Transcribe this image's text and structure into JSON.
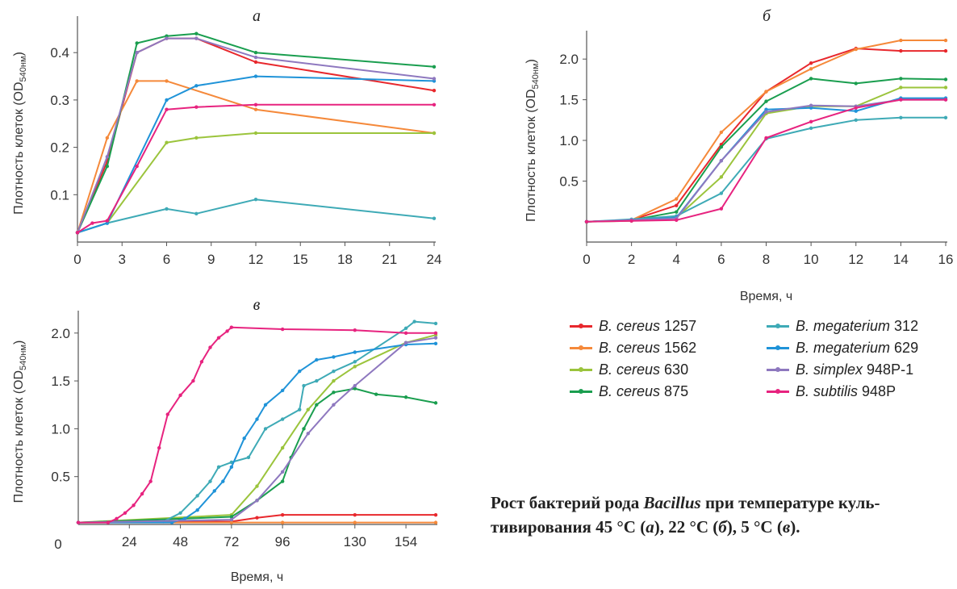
{
  "colors": {
    "bc1257": "#e8282d",
    "bc1562": "#f5893a",
    "bc630": "#9bc43c",
    "bc875": "#1a9e4f",
    "bm312": "#3eaab6",
    "bm629": "#1f93d8",
    "bs9481": "#8e78bf",
    "bsub948": "#e7237f"
  },
  "legend": [
    {
      "genus": "B. cereus",
      "strain": "1257",
      "color": "#e8282d"
    },
    {
      "genus": "B. cereus",
      "strain": "1562",
      "color": "#f5893a"
    },
    {
      "genus": "B. cereus",
      "strain": "630",
      "color": "#9bc43c"
    },
    {
      "genus": "B. cereus",
      "strain": "875",
      "color": "#1a9e4f"
    },
    {
      "genus": "B. megaterium",
      "strain": "312",
      "color": "#3eaab6"
    },
    {
      "genus": "B. megaterium",
      "strain": "629",
      "color": "#1f93d8"
    },
    {
      "genus": "B. simplex",
      "strain": "948P-1",
      "color": "#8e78bf"
    },
    {
      "genus": "B. subtilis",
      "strain": "948P",
      "color": "#e7237f"
    }
  ],
  "caption": {
    "line1_a": "Рост бактерий рода ",
    "line1_b": "Bacillus",
    "line1_c": " при температуре куль-",
    "line2_a": "тивирования 45 °C (",
    "line2_b": "а",
    "line2_c": "), 22 °C (",
    "line2_d": "б",
    "line2_e": "), 5 °C (",
    "line2_f": "в",
    "line2_g": ")."
  },
  "chart_data": [
    {
      "id": "a",
      "type": "line",
      "title": "а",
      "xlabel": "",
      "ylabel": "Плотность клеток (OD540нм)",
      "xlim": [
        0,
        24
      ],
      "ylim": [
        0,
        0.46
      ],
      "xticks": [
        0,
        3,
        6,
        9,
        12,
        15,
        18,
        21,
        24
      ],
      "yticks": [
        0.1,
        0.2,
        0.3,
        0.4
      ],
      "xtick_labels": [
        "0",
        "3",
        "6",
        "9",
        "12",
        "15",
        "18",
        "21",
        "24"
      ],
      "ytick_labels": [
        "0.1",
        "0.2",
        "0.3",
        "0.4"
      ],
      "series": [
        {
          "name": "B. cereus 1257",
          "color": "#e8282d",
          "x": [
            0,
            2,
            4,
            6,
            8,
            12,
            24
          ],
          "y": [
            0.02,
            0.17,
            0.4,
            0.43,
            0.43,
            0.38,
            0.32
          ]
        },
        {
          "name": "B. cereus 1562",
          "color": "#f5893a",
          "x": [
            0,
            2,
            4,
            6,
            12,
            24
          ],
          "y": [
            0.02,
            0.22,
            0.34,
            0.34,
            0.28,
            0.23
          ]
        },
        {
          "name": "B. cereus 630",
          "color": "#9bc43c",
          "x": [
            0,
            2,
            6,
            8,
            12,
            24
          ],
          "y": [
            0.02,
            0.04,
            0.21,
            0.22,
            0.23,
            0.23
          ]
        },
        {
          "name": "B. cereus 875",
          "color": "#1a9e4f",
          "x": [
            0,
            2,
            4,
            6,
            8,
            12,
            24
          ],
          "y": [
            0.02,
            0.16,
            0.42,
            0.435,
            0.44,
            0.4,
            0.37
          ]
        },
        {
          "name": "B. megaterium 312",
          "color": "#3eaab6",
          "x": [
            0,
            2,
            6,
            8,
            12,
            24
          ],
          "y": [
            0.02,
            0.04,
            0.07,
            0.06,
            0.09,
            0.05
          ]
        },
        {
          "name": "B. megaterium 629",
          "color": "#1f93d8",
          "x": [
            0,
            2,
            6,
            8,
            12,
            24
          ],
          "y": [
            0.02,
            0.04,
            0.3,
            0.33,
            0.35,
            0.34
          ]
        },
        {
          "name": "B. simplex 948P-1",
          "color": "#8e78bf",
          "x": [
            0,
            2,
            4,
            6,
            8,
            12,
            24
          ],
          "y": [
            0.02,
            0.18,
            0.4,
            0.43,
            0.43,
            0.39,
            0.345
          ]
        },
        {
          "name": "B. subtilis 948P",
          "color": "#e7237f",
          "x": [
            0,
            1,
            2,
            4,
            6,
            8,
            12,
            24
          ],
          "y": [
            0.02,
            0.04,
            0.045,
            0.16,
            0.28,
            0.285,
            0.29,
            0.29
          ]
        }
      ]
    },
    {
      "id": "b",
      "type": "line",
      "title": "б",
      "xlabel": "Время, ч",
      "ylabel": "Плотность клеток (OD540нм)",
      "xlim": [
        0,
        16
      ],
      "ylim": [
        -0.25,
        2.25
      ],
      "xticks": [
        0,
        2,
        4,
        6,
        8,
        10,
        12,
        14,
        16
      ],
      "yticks": [
        0.5,
        1.0,
        1.5,
        2.0
      ],
      "xtick_labels": [
        "0",
        "2",
        "4",
        "6",
        "8",
        "10",
        "12",
        "14",
        "16"
      ],
      "ytick_labels": [
        "0.5",
        "1.0",
        "1.5",
        "2.0"
      ],
      "series": [
        {
          "name": "B. cereus 1257",
          "color": "#e8282d",
          "x": [
            0,
            2,
            4,
            6,
            8,
            10,
            12,
            14,
            16
          ],
          "y": [
            0,
            0.02,
            0.2,
            0.95,
            1.6,
            1.95,
            2.13,
            2.1,
            2.1
          ]
        },
        {
          "name": "B. cereus 1562",
          "color": "#f5893a",
          "x": [
            0,
            2,
            4,
            6,
            8,
            10,
            12,
            14,
            16
          ],
          "y": [
            0,
            0.02,
            0.28,
            1.1,
            1.6,
            1.88,
            2.12,
            2.23,
            2.23
          ]
        },
        {
          "name": "B. cereus 630",
          "color": "#9bc43c",
          "x": [
            0,
            2,
            4,
            6,
            8,
            10,
            12,
            14,
            16
          ],
          "y": [
            0,
            0.01,
            0.05,
            0.55,
            1.33,
            1.42,
            1.42,
            1.65,
            1.65
          ]
        },
        {
          "name": "B. cereus 875",
          "color": "#1a9e4f",
          "x": [
            0,
            2,
            4,
            6,
            8,
            10,
            12,
            14,
            16
          ],
          "y": [
            0,
            0.02,
            0.12,
            0.92,
            1.48,
            1.76,
            1.7,
            1.76,
            1.75
          ]
        },
        {
          "name": "B. megaterium 312",
          "color": "#3eaab6",
          "x": [
            0,
            2,
            4,
            6,
            8,
            10,
            12,
            14,
            16
          ],
          "y": [
            0,
            0.03,
            0.07,
            0.35,
            1.02,
            1.15,
            1.25,
            1.28,
            1.28
          ]
        },
        {
          "name": "B. megaterium 629",
          "color": "#1f93d8",
          "x": [
            0,
            2,
            4,
            6,
            8,
            10,
            12,
            14,
            16
          ],
          "y": [
            0,
            0.02,
            0.05,
            0.75,
            1.38,
            1.4,
            1.36,
            1.52,
            1.52
          ]
        },
        {
          "name": "B. simplex 948P-1",
          "color": "#8e78bf",
          "x": [
            0,
            2,
            4,
            6,
            8,
            10,
            12,
            14,
            16
          ],
          "y": [
            0,
            0.02,
            0.04,
            0.75,
            1.35,
            1.43,
            1.42,
            1.5,
            1.5
          ]
        },
        {
          "name": "B. subtilis 948P",
          "color": "#e7237f",
          "x": [
            0,
            2,
            4,
            6,
            8,
            10,
            12,
            14,
            16
          ],
          "y": [
            0,
            0.01,
            0.02,
            0.16,
            1.03,
            1.23,
            1.4,
            1.5,
            1.5
          ]
        }
      ]
    },
    {
      "id": "c",
      "type": "line",
      "title": "в",
      "xlabel": "Время, ч",
      "ylabel": "Плотность клеток (OD540нм)",
      "xlim": [
        0,
        168
      ],
      "ylim": [
        0,
        2.15
      ],
      "xticks": [
        24,
        48,
        72,
        96,
        130,
        154
      ],
      "yticks": [
        0.5,
        1.0,
        1.5,
        2.0
      ],
      "xtick_labels": [
        "24",
        "48",
        "72",
        "96",
        "130",
        "154"
      ],
      "ytick_labels": [
        "0.5",
        "1.0",
        "1.5",
        "2.0"
      ],
      "series": [
        {
          "name": "B. cereus 1257",
          "color": "#e8282d",
          "x": [
            0,
            72,
            84,
            96,
            130,
            168
          ],
          "y": [
            0.02,
            0.03,
            0.07,
            0.1,
            0.1,
            0.1
          ]
        },
        {
          "name": "B. cereus 1562",
          "color": "#f5893a",
          "x": [
            0,
            72,
            96,
            130,
            168
          ],
          "y": [
            0.02,
            0.02,
            0.02,
            0.02,
            0.02
          ]
        },
        {
          "name": "B. cereus 630",
          "color": "#9bc43c",
          "x": [
            0,
            72,
            84,
            96,
            108,
            120,
            130,
            154,
            168
          ],
          "y": [
            0.02,
            0.1,
            0.4,
            0.8,
            1.2,
            1.5,
            1.65,
            1.9,
            1.98
          ]
        },
        {
          "name": "B. cereus 875",
          "color": "#1a9e4f",
          "x": [
            0,
            72,
            84,
            96,
            100,
            106,
            112,
            120,
            130,
            140,
            154,
            168
          ],
          "y": [
            0.02,
            0.08,
            0.25,
            0.45,
            0.7,
            1.0,
            1.25,
            1.38,
            1.42,
            1.36,
            1.33,
            1.27
          ]
        },
        {
          "name": "B. megaterium 312",
          "color": "#3eaab6",
          "x": [
            0,
            40,
            48,
            56,
            62,
            66,
            72,
            80,
            88,
            96,
            104,
            106,
            112,
            120,
            130,
            154,
            158,
            168
          ],
          "y": [
            0.02,
            0.03,
            0.12,
            0.3,
            0.45,
            0.6,
            0.65,
            0.7,
            1.0,
            1.1,
            1.2,
            1.45,
            1.5,
            1.6,
            1.7,
            2.05,
            2.12,
            2.1
          ]
        },
        {
          "name": "B. megaterium 629",
          "color": "#1f93d8",
          "x": [
            0,
            44,
            50,
            56,
            64,
            68,
            72,
            78,
            84,
            88,
            96,
            104,
            112,
            120,
            130,
            154,
            168
          ],
          "y": [
            0.02,
            0.02,
            0.06,
            0.15,
            0.35,
            0.45,
            0.6,
            0.9,
            1.1,
            1.25,
            1.4,
            1.6,
            1.72,
            1.75,
            1.8,
            1.88,
            1.89
          ]
        },
        {
          "name": "B. simplex 948P-1",
          "color": "#8e78bf",
          "x": [
            0,
            72,
            84,
            96,
            108,
            120,
            130,
            154,
            168
          ],
          "y": [
            0.02,
            0.05,
            0.25,
            0.55,
            0.95,
            1.25,
            1.45,
            1.9,
            1.95
          ]
        },
        {
          "name": "B. subtilis 948P",
          "color": "#e7237f",
          "x": [
            0,
            14,
            18,
            22,
            26,
            30,
            34,
            38,
            42,
            48,
            54,
            58,
            62,
            66,
            70,
            72,
            96,
            130,
            154,
            168
          ],
          "y": [
            0.02,
            0.02,
            0.06,
            0.12,
            0.2,
            0.32,
            0.45,
            0.8,
            1.15,
            1.35,
            1.5,
            1.7,
            1.85,
            1.95,
            2.02,
            2.06,
            2.04,
            2.03,
            2.0,
            2.0
          ]
        }
      ]
    }
  ]
}
